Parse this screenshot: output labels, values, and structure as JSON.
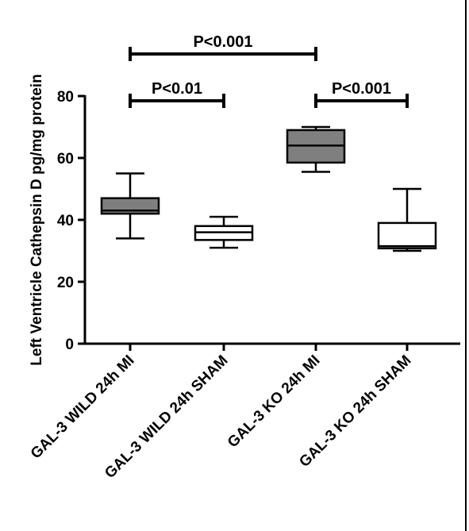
{
  "chart_data": {
    "type": "box",
    "ylabel": "Left  Ventricle Cathepsin D pg/mg protein",
    "ylim": [
      0,
      80
    ],
    "yticks": [
      0,
      20,
      40,
      60,
      80
    ],
    "grid": false,
    "categories": [
      "GAL-3 WILD 24h MI",
      "GAL-3 WILD 24h SHAM",
      "GAL-3 KO 24h MI",
      "GAL-3 KO 24h SHAM"
    ],
    "boxes": [
      {
        "category": "GAL-3 WILD 24h MI",
        "min": 34,
        "q1": 42,
        "median": 43,
        "q3": 47,
        "max": 55,
        "fill": "#7f7f7f"
      },
      {
        "category": "GAL-3 WILD 24h SHAM",
        "min": 31,
        "q1": 33.5,
        "median": 36,
        "q3": 38,
        "max": 41,
        "fill": "#ffffff"
      },
      {
        "category": "GAL-3 KO 24h MI",
        "min": 55.5,
        "q1": 58.5,
        "median": 64,
        "q3": 69,
        "max": 70,
        "fill": "#7f7f7f"
      },
      {
        "category": "GAL-3 KO 24h SHAM",
        "min": 30,
        "q1": 30.8,
        "median": 31.5,
        "q3": 39,
        "max": 50,
        "fill": "#ffffff"
      }
    ],
    "annotations": [
      {
        "label": "P<0.001",
        "from": 0,
        "to": 2,
        "level": 2
      },
      {
        "label": "P<0.01",
        "from": 0,
        "to": 1,
        "level": 1
      },
      {
        "label": "P<0.001",
        "from": 2,
        "to": 3,
        "level": 1
      }
    ]
  }
}
